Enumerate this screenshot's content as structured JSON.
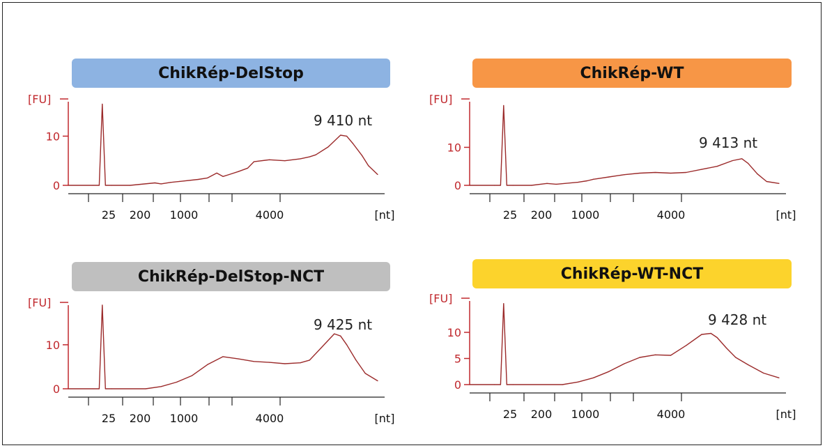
{
  "colors": {
    "axis_red": "#c0282d",
    "trace": "#9b2a2a",
    "axis_black": "#222222"
  },
  "chart_data": [
    {
      "type": "line",
      "title": "ChikRép-DelStop",
      "title_color": "#8db3e2",
      "ylabel": "[FU]",
      "xlabel": "[nt]",
      "y_ticks": [
        "0",
        "10"
      ],
      "y_tick_values": [
        0,
        10
      ],
      "x_ticks": [
        "25",
        "200",
        "1000",
        "4000"
      ],
      "annotation": "9 410 nt",
      "ylim": [
        0,
        17
      ],
      "x": [
        0,
        8,
        10,
        11,
        12,
        14,
        20,
        28,
        30,
        33,
        36,
        42,
        45,
        48,
        50,
        52,
        55,
        58,
        60,
        65,
        70,
        75,
        78,
        80,
        84,
        88,
        90,
        92,
        95,
        97,
        100
      ],
      "y": [
        0,
        0,
        0,
        16.5,
        0,
        0,
        0,
        0.5,
        0.3,
        0.6,
        0.8,
        1.2,
        1.5,
        2.5,
        1.8,
        2.2,
        2.8,
        3.5,
        4.8,
        5.2,
        5.0,
        5.4,
        5.8,
        6.2,
        7.8,
        10.2,
        10.0,
        8.5,
        6.0,
        4.0,
        2.2
      ]
    },
    {
      "type": "line",
      "title": "ChikRép-WT",
      "title_color": "#f79646",
      "ylabel": "[FU]",
      "xlabel": "[nt]",
      "y_ticks": [
        "0",
        "10"
      ],
      "y_tick_values": [
        0,
        10
      ],
      "x_ticks": [
        "25",
        "200",
        "1000",
        "4000"
      ],
      "annotation": "9 413 nt",
      "ylim": [
        0,
        22
      ],
      "x": [
        0,
        8,
        10,
        11,
        12,
        14,
        20,
        25,
        28,
        35,
        38,
        40,
        45,
        50,
        55,
        60,
        65,
        70,
        75,
        80,
        85,
        88,
        90,
        93,
        96,
        100
      ],
      "y": [
        0,
        0,
        0,
        21,
        0,
        0,
        0,
        0.5,
        0.3,
        0.8,
        1.2,
        1.6,
        2.2,
        2.8,
        3.2,
        3.4,
        3.2,
        3.4,
        4.2,
        5.0,
        6.5,
        7.0,
        5.8,
        3.0,
        1.0,
        0.5
      ]
    },
    {
      "type": "line",
      "title": "ChikRép-DelStop-NCT",
      "title_color": "#bfbfbf",
      "ylabel": "[FU]",
      "xlabel": "[nt]",
      "y_ticks": [
        "0",
        "10"
      ],
      "y_tick_values": [
        0,
        10
      ],
      "x_ticks": [
        "25",
        "200",
        "1000",
        "4000"
      ],
      "annotation": "9 425 nt",
      "ylim": [
        0,
        19
      ],
      "x": [
        0,
        8,
        10,
        11,
        12,
        14,
        25,
        30,
        35,
        40,
        45,
        50,
        55,
        60,
        65,
        70,
        75,
        78,
        82,
        86,
        88,
        90,
        93,
        96,
        100
      ],
      "y": [
        0,
        0,
        0,
        19,
        0,
        0,
        0,
        0.5,
        1.5,
        3.0,
        5.5,
        7.3,
        6.8,
        6.2,
        6.0,
        5.7,
        5.9,
        6.5,
        9.5,
        12.5,
        12.0,
        10.0,
        6.5,
        3.5,
        1.8
      ]
    },
    {
      "type": "line",
      "title": "ChikRép-WT-NCT",
      "title_color": "#fcd32c",
      "ylabel": "[FU]",
      "xlabel": "[nt]",
      "y_ticks": [
        "0",
        "5",
        "10"
      ],
      "y_tick_values": [
        0,
        5,
        10
      ],
      "x_ticks": [
        "25",
        "200",
        "1000",
        "4000"
      ],
      "annotation": "9 428 nt",
      "ylim": [
        0,
        16
      ],
      "x": [
        0,
        8,
        10,
        11,
        12,
        14,
        30,
        35,
        40,
        45,
        50,
        55,
        60,
        65,
        70,
        75,
        78,
        80,
        83,
        86,
        90,
        95,
        100
      ],
      "y": [
        0,
        0,
        0,
        15.5,
        0,
        0,
        0,
        0.5,
        1.3,
        2.5,
        4.0,
        5.2,
        5.7,
        5.6,
        7.5,
        9.6,
        9.8,
        9.0,
        7.0,
        5.2,
        3.8,
        2.2,
        1.3
      ]
    }
  ]
}
